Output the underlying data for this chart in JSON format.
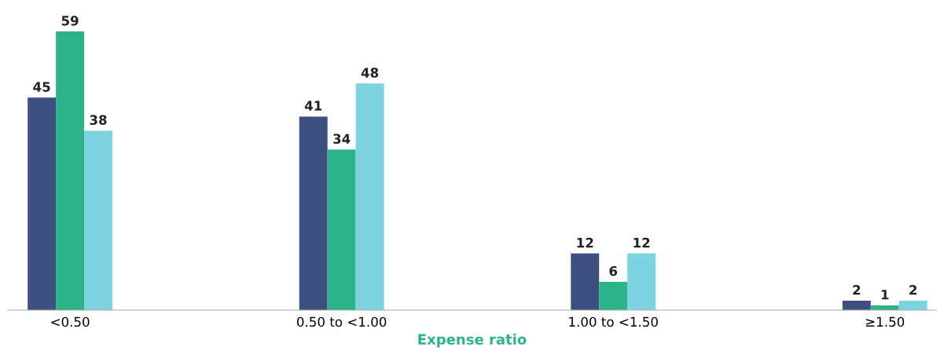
{
  "chart_data": {
    "type": "bar",
    "xlabel": "Expense ratio",
    "categories": [
      "<0.50",
      "0.50 to <1.00",
      "1.00 to <1.50",
      "≥1.50"
    ],
    "series": [
      {
        "color": "#3d5080",
        "values": [
          45,
          41,
          12,
          2
        ]
      },
      {
        "color": "#2db38a",
        "values": [
          59,
          34,
          6,
          1
        ]
      },
      {
        "color": "#7dd3e0",
        "values": [
          38,
          48,
          12,
          2
        ]
      }
    ],
    "data_labels": true,
    "grid": false
  }
}
